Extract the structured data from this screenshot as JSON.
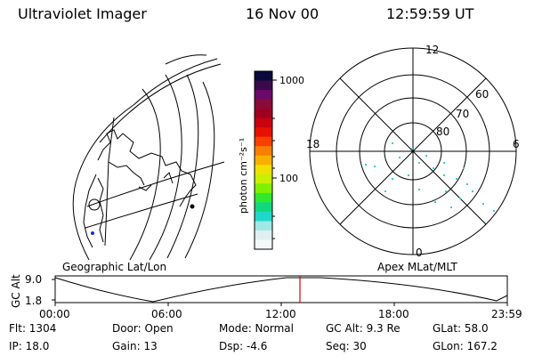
{
  "header": {
    "instrument": "Ultraviolet Imager",
    "date": "16 Nov 00",
    "time": "12:59:59 UT"
  },
  "colorbar": {
    "label": "photon cm⁻²s⁻¹",
    "ticks": [
      "1000",
      "100"
    ],
    "colors": [
      "#0a0a3a",
      "#3a0a4a",
      "#6a0a6a",
      "#8a0a3a",
      "#a00020",
      "#c80010",
      "#e81000",
      "#f84000",
      "#f88000",
      "#f8b000",
      "#f0e000",
      "#c8f000",
      "#80f000",
      "#30e830",
      "#10d880",
      "#20d8c8",
      "#a0e8e8",
      "#e0f0f0",
      "#f4f8f8"
    ]
  },
  "polar_plot": {
    "mlt_labels": {
      "top": "12",
      "left": "18",
      "right": "6",
      "bottom": "0"
    },
    "lat_labels": [
      "60",
      "70",
      "80"
    ],
    "accent": "#30d0d0"
  },
  "geo_label": "Geographic Lat/Lon",
  "apex_label": "Apex MLat/MLT",
  "timeline": {
    "y_axis_title": "GC Alt",
    "y_ticks": [
      "9.0",
      "1.8"
    ],
    "x_ticks": [
      "00:00",
      "06:00",
      "12:00",
      "18:00",
      "23:59"
    ],
    "marker_color": "#e00000"
  },
  "info": {
    "flt": "Flt: 1304",
    "ip": "IP: 18.0",
    "door": "Door: Open",
    "gain": "Gain: 13",
    "mode": "Mode: Normal",
    "dsp": "Dsp:    -4.6",
    "gcalt": "GC Alt: 9.3 Re",
    "seq": "Seq: 30",
    "glat": "GLat:   58.0",
    "glon": "GLon: 167.2"
  }
}
